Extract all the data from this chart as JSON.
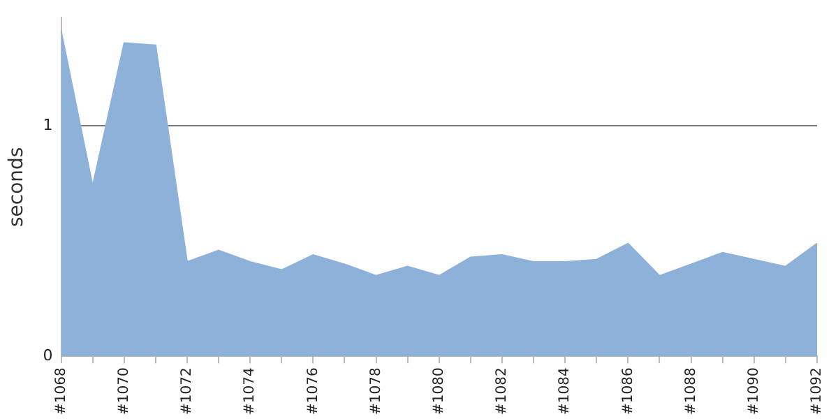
{
  "chart_data": {
    "type": "area",
    "ylabel": "seconds",
    "categories": [
      "#1068",
      null,
      "#1070",
      null,
      "#1072",
      null,
      "#1074",
      null,
      "#1076",
      null,
      "#1078",
      null,
      "#1080",
      null,
      "#1082",
      null,
      "#1084",
      null,
      "#1086",
      null,
      "#1088",
      null,
      "#1090",
      null,
      "#1092"
    ],
    "series": [
      {
        "color": "#8eb1da",
        "values": [
          1.41,
          0.74,
          1.36,
          1.35,
          0.41,
          0.46,
          0.41,
          0.375,
          0.44,
          0.4,
          0.35,
          0.39,
          0.35,
          0.43,
          0.44,
          0.41,
          0.41,
          0.42,
          0.49,
          0.35,
          0.4,
          0.45,
          0.42,
          0.39,
          0.49
        ]
      }
    ],
    "ylim": [
      0,
      1.47
    ],
    "yticks": [
      0,
      1
    ],
    "grid": "y",
    "legend": false
  }
}
